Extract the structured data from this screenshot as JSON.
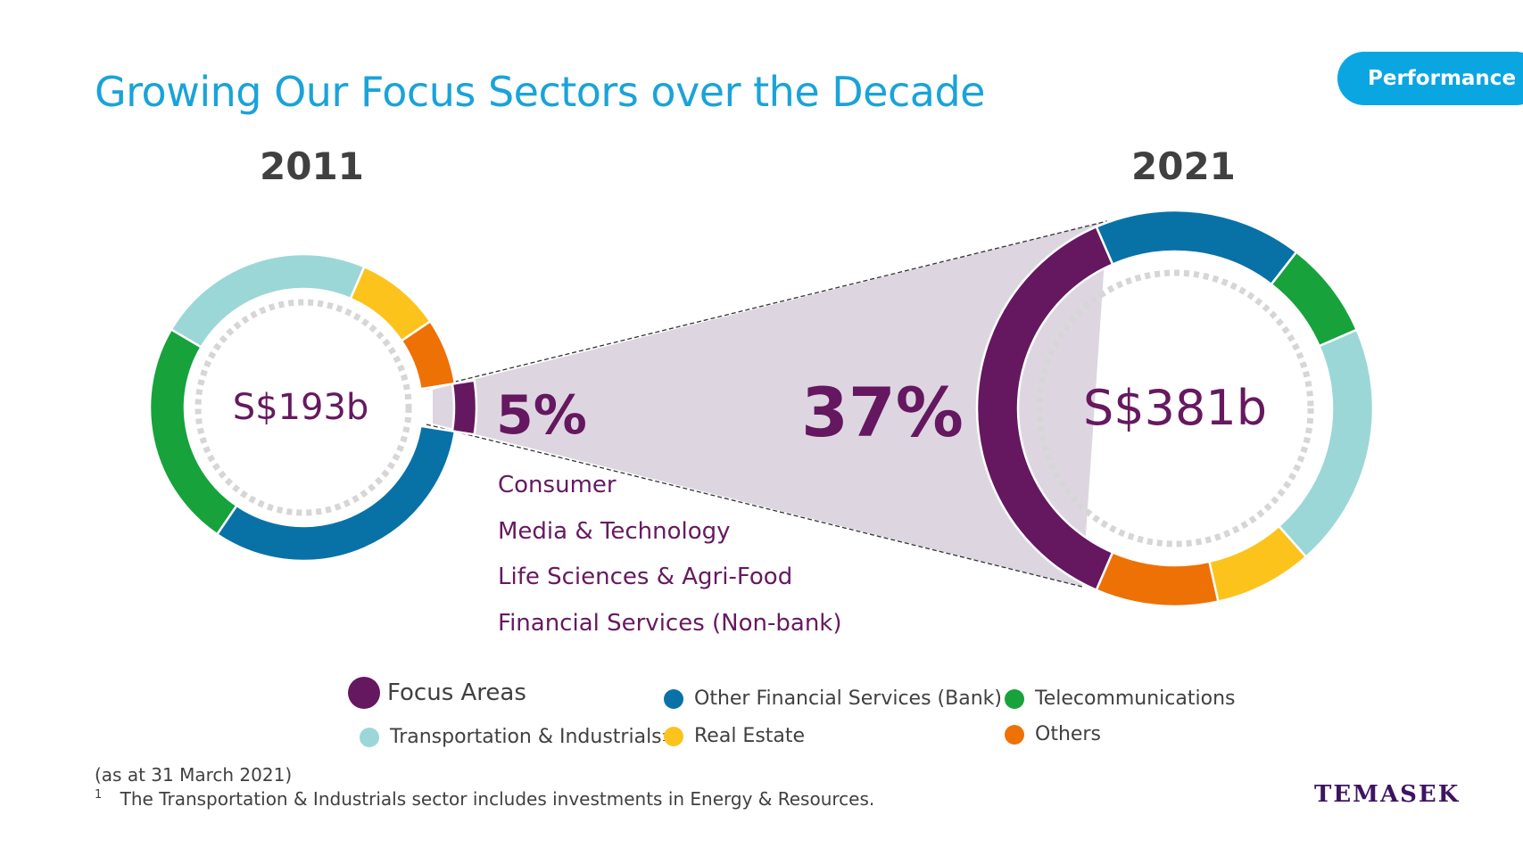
{
  "title": "Growing Our Focus Sectors over the Decade",
  "tag": "Performance",
  "chart_data": [
    {
      "type": "pie",
      "title": "2011",
      "center_label": "S$193b",
      "highlight_label": "5%",
      "slices": [
        {
          "name": "Focus Areas",
          "value": 5,
          "color": "#651760"
        },
        {
          "name": "Other Financial Services (Bank)",
          "value": 32,
          "color": "#0872a7"
        },
        {
          "name": "Telecommunications",
          "value": 24,
          "color": "#17a23b"
        },
        {
          "name": "Transportation & Industrials",
          "value": 23,
          "color": "#9bd7d6"
        },
        {
          "name": "Real Estate",
          "value": 9,
          "color": "#fcc31d"
        },
        {
          "name": "Others",
          "value": 7,
          "color": "#ee7105"
        }
      ]
    },
    {
      "type": "pie",
      "title": "2021",
      "center_label": "S$381b",
      "highlight_label": "37%",
      "slices": [
        {
          "name": "Focus Areas",
          "value": 37,
          "color": "#651760"
        },
        {
          "name": "Other Financial Services (Bank)",
          "value": 17,
          "color": "#0872a7"
        },
        {
          "name": "Telecommunications",
          "value": 8,
          "color": "#17a23b"
        },
        {
          "name": "Transportation & Industrials",
          "value": 20,
          "color": "#9bd7d6"
        },
        {
          "name": "Real Estate",
          "value": 8,
          "color": "#fcc31d"
        },
        {
          "name": "Others",
          "value": 10,
          "color": "#ee7105"
        }
      ]
    }
  ],
  "focus_sectors": [
    "Consumer",
    "Media & Technology",
    "Life Sciences & Agri-Food",
    "Financial Services (Non-bank)"
  ],
  "legend": {
    "focus": "Focus Areas",
    "transport": "Transportation & Industrials",
    "transport_sup": "1",
    "bank": "Other Financial Services (Bank)",
    "real_estate": "Real Estate",
    "telecom": "Telecommunications",
    "others": "Others"
  },
  "footnotes": {
    "date": "(as at 31 March 2021)",
    "note_marker": "1",
    "note_text": "The Transportation & Industrials sector includes investments in Energy & Resources."
  },
  "logo": "TEMASEK",
  "colors": {
    "title": "#1aa3d9",
    "focus": "#651760",
    "bank": "#0872a7",
    "telecom": "#17a23b",
    "transport": "#9bd7d6",
    "real_estate": "#fcc31d",
    "others": "#ee7105",
    "wedge_fill": "#ddd6e1"
  }
}
